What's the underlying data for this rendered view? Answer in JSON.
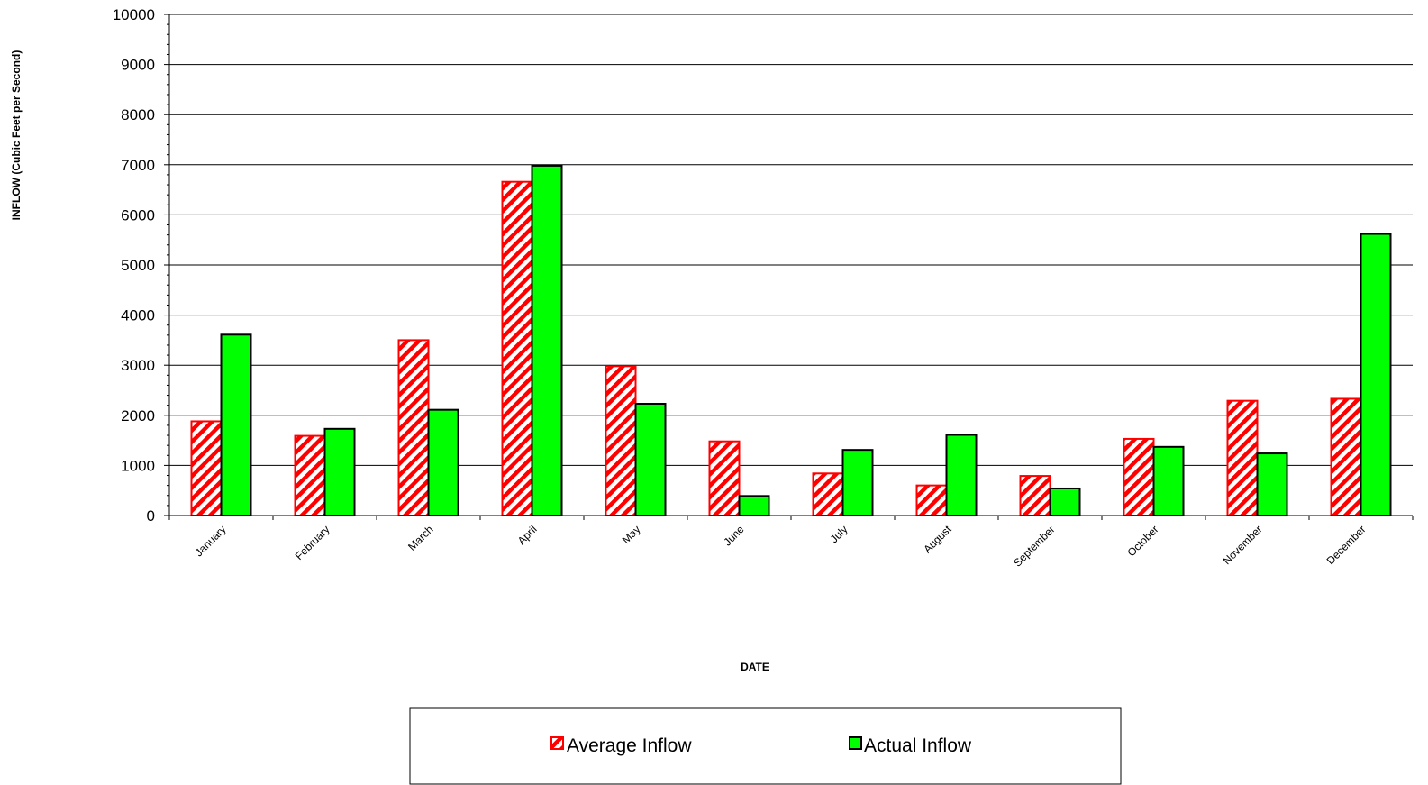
{
  "chart_data": {
    "type": "bar",
    "categories": [
      "January",
      "February",
      "March",
      "April",
      "May",
      "June",
      "July",
      "August",
      "September",
      "October",
      "November",
      "December"
    ],
    "series": [
      {
        "name": "Average Inflow",
        "values": [
          1880,
          1590,
          3500,
          6660,
          2980,
          1480,
          840,
          600,
          790,
          1530,
          2290,
          2330
        ],
        "color": "#ff0000",
        "pattern": "diagonal-stripes"
      },
      {
        "name": "Actual Inflow",
        "values": [
          3610,
          1730,
          2110,
          6980,
          2230,
          390,
          1310,
          1610,
          540,
          1370,
          1240,
          5620
        ],
        "color": "#00ff00",
        "pattern": "solid"
      }
    ],
    "title": "",
    "xlabel": "DATE",
    "ylabel": "INFLOW (Cubic Feet per Second)",
    "ylim": [
      0,
      10000
    ],
    "yticks": [
      0,
      1000,
      2000,
      3000,
      4000,
      5000,
      6000,
      7000,
      8000,
      9000,
      10000
    ],
    "grid": "horizontal",
    "legend": "bottom-center"
  }
}
